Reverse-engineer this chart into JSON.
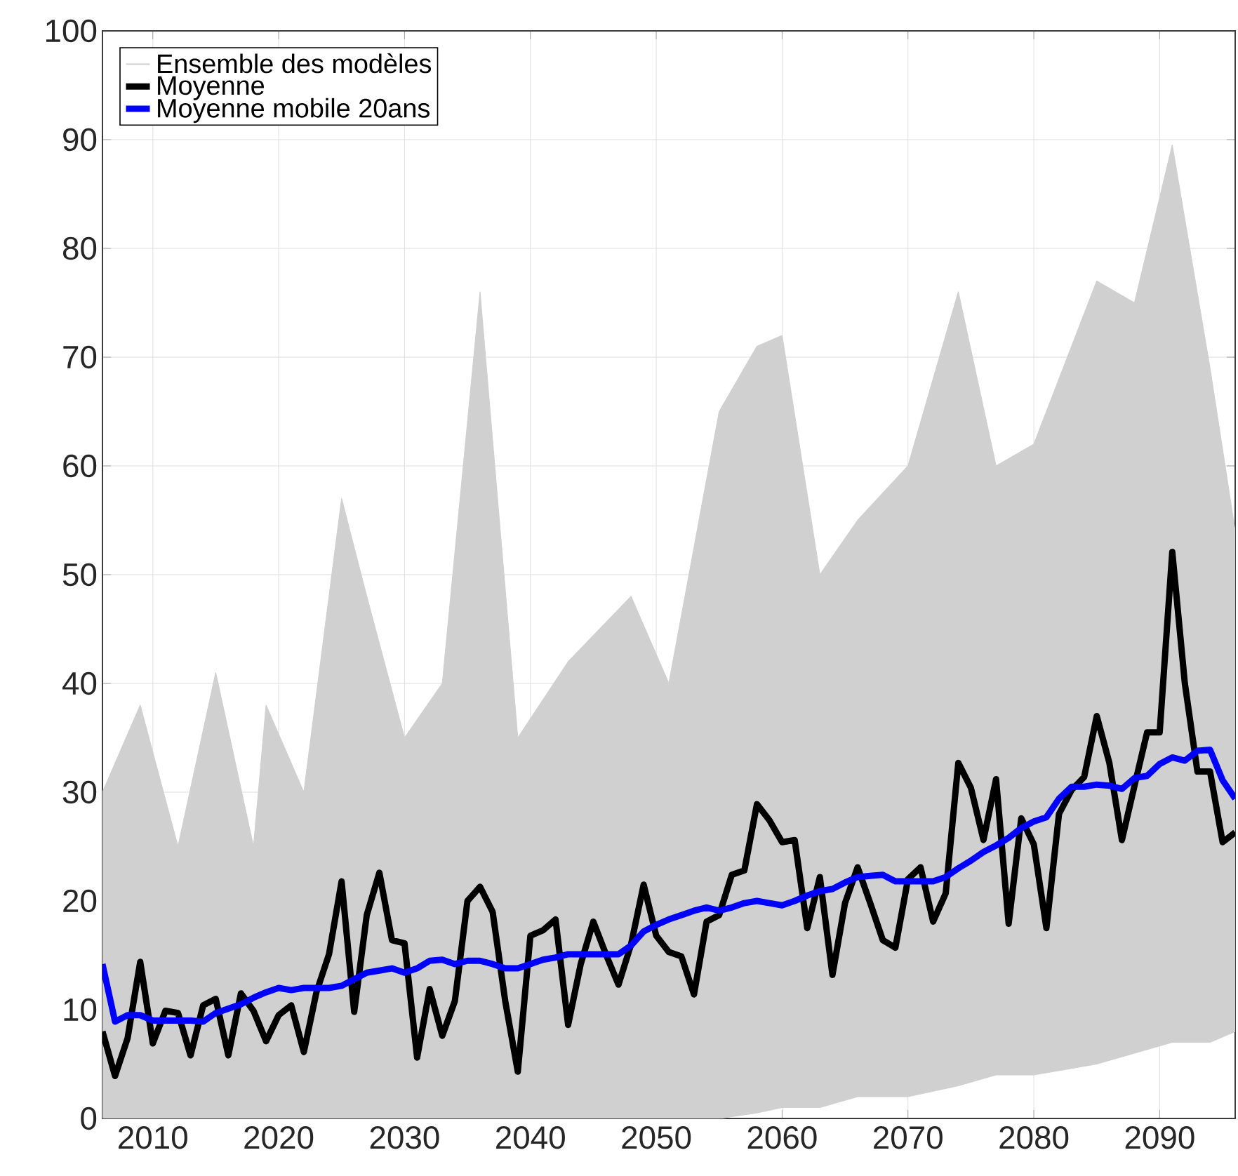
{
  "chart_data": {
    "type": "line",
    "legend": "top left",
    "grid": true,
    "xlim": [
      2006,
      2096
    ],
    "ylim": [
      0,
      100
    ],
    "xticks": [
      2010,
      2020,
      2030,
      2040,
      2050,
      2060,
      2070,
      2080,
      2090
    ],
    "yticks": [
      0,
      10,
      20,
      30,
      40,
      50,
      60,
      70,
      80,
      90,
      100
    ],
    "x": [
      2006,
      2007,
      2008,
      2009,
      2010,
      2011,
      2012,
      2013,
      2014,
      2015,
      2016,
      2017,
      2018,
      2019,
      2020,
      2021,
      2022,
      2023,
      2024,
      2025,
      2026,
      2027,
      2028,
      2029,
      2030,
      2031,
      2032,
      2033,
      2034,
      2035,
      2036,
      2037,
      2038,
      2039,
      2040,
      2041,
      2042,
      2043,
      2044,
      2045,
      2046,
      2047,
      2048,
      2049,
      2050,
      2051,
      2052,
      2053,
      2054,
      2055,
      2056,
      2057,
      2058,
      2059,
      2060,
      2061,
      2062,
      2063,
      2064,
      2065,
      2066,
      2067,
      2068,
      2069,
      2070,
      2071,
      2072,
      2073,
      2074,
      2075,
      2076,
      2077,
      2078,
      2079,
      2080,
      2081,
      2082,
      2083,
      2084,
      2085,
      2086,
      2087,
      2088,
      2089,
      2090,
      2091,
      2092,
      2093,
      2094,
      2095,
      2096
    ],
    "series": [
      {
        "name": "Ensemble des modèles",
        "color": "#d0d0d0",
        "x": [
          2006,
          2009,
          2012,
          2015,
          2018,
          2019,
          2022,
          2025,
          2027,
          2030,
          2033,
          2036,
          2039,
          2043,
          2048,
          2051,
          2055,
          2058,
          2060,
          2063,
          2066,
          2070,
          2074,
          2077,
          2080,
          2085,
          2088,
          2091,
          2094,
          2096
        ],
        "values": [
          null,
          null,
          null,
          null,
          null,
          null,
          null,
          null,
          null,
          null,
          null,
          null,
          null,
          null,
          null,
          null,
          null,
          null,
          null,
          null,
          null,
          null,
          null,
          null,
          null,
          null,
          null,
          null,
          null,
          null
        ],
        "lower": [
          0,
          0,
          0,
          0,
          0,
          0,
          0,
          0,
          0,
          0,
          0,
          0,
          0,
          0,
          0,
          0,
          0,
          0.5,
          1,
          1,
          2,
          2,
          3,
          4,
          4,
          5,
          6,
          7,
          7,
          8
        ],
        "upper": [
          30,
          38,
          25,
          41,
          25,
          38,
          30,
          57,
          48,
          35,
          40,
          76,
          35,
          42,
          48,
          40,
          65,
          71,
          72,
          50,
          55,
          60,
          76,
          60,
          62,
          77,
          75,
          89.5,
          69,
          54
        ]
      },
      {
        "name": "Moyenne",
        "color": "#000000",
        "values": [
          8,
          3.9,
          7.4,
          14.4,
          6.9,
          9.9,
          9.7,
          5.8,
          10.4,
          11.0,
          5.8,
          11.5,
          9.9,
          7.1,
          9.5,
          10.4,
          6.1,
          11.6,
          15.1,
          21.8,
          9.8,
          18.7,
          22.6,
          16.4,
          16.1,
          5.6,
          11.9,
          7.6,
          10.8,
          20.0,
          21.3,
          19.0,
          10.8,
          4.3,
          16.8,
          17.3,
          18.3,
          8.6,
          14.2,
          18.1,
          15.1,
          12.3,
          16.0,
          21.5,
          16.8,
          15.3,
          14.9,
          11.4,
          18.1,
          18.7,
          22.4,
          22.8,
          28.9,
          27.4,
          25.4,
          25.6,
          17.5,
          22.2,
          13.2,
          19.8,
          23.1,
          19.8,
          16.4,
          15.7,
          22.0,
          23.1,
          18.1,
          20.7,
          32.7,
          30.4,
          25.6,
          31.2,
          17.9,
          27.6,
          25.2,
          17.5,
          28.0,
          30.2,
          31.4,
          37.0,
          32.7,
          25.6,
          30.6,
          35.5,
          35.5,
          52.1,
          40.0,
          31.9,
          31.9,
          25.4,
          26.3
        ]
      },
      {
        "name": "Moyenne mobile 20ans",
        "color": "#0000ff",
        "values": [
          14.2,
          8.9,
          9.5,
          9.5,
          9.0,
          9.0,
          9.0,
          9.0,
          8.9,
          9.7,
          10.1,
          10.5,
          11.1,
          11.6,
          12.0,
          11.8,
          12.0,
          12.0,
          12.0,
          12.2,
          12.8,
          13.4,
          13.6,
          13.8,
          13.4,
          13.8,
          14.5,
          14.6,
          14.2,
          14.5,
          14.5,
          14.2,
          13.8,
          13.8,
          14.2,
          14.6,
          14.8,
          15.1,
          15.1,
          15.1,
          15.1,
          15.1,
          15.9,
          17.2,
          17.8,
          18.3,
          18.7,
          19.1,
          19.4,
          19.1,
          19.4,
          19.8,
          20.0,
          19.8,
          19.6,
          20.0,
          20.5,
          20.9,
          21.1,
          21.7,
          22.2,
          22.3,
          22.4,
          21.8,
          21.8,
          21.8,
          21.8,
          22.2,
          23.0,
          23.7,
          24.5,
          25.1,
          25.8,
          26.7,
          27.3,
          27.7,
          29.4,
          30.5,
          30.5,
          30.7,
          30.6,
          30.3,
          31.3,
          31.5,
          32.6,
          33.2,
          32.9,
          33.8,
          33.9,
          31.1,
          29.4
        ]
      }
    ]
  }
}
